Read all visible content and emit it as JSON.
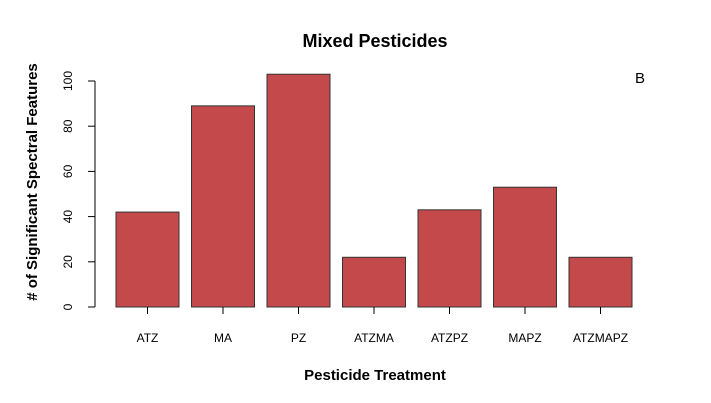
{
  "chart_data": {
    "type": "bar",
    "title": "Mixed Pesticides",
    "xlabel": "Pesticide Treatment",
    "ylabel": "# of Significant Spectral Features",
    "panel_label": "B",
    "categories": [
      "ATZ",
      "MA",
      "PZ",
      "ATZMA",
      "ATZPZ",
      "MAPZ",
      "ATZMAPZ"
    ],
    "values": [
      42,
      89,
      103,
      22,
      43,
      53,
      22
    ],
    "ylim": [
      0,
      100
    ],
    "yticks": [
      0,
      20,
      40,
      60,
      80,
      100
    ],
    "bar_color": "#c4494b",
    "bar_edge_color": "#333333",
    "grid": false,
    "legend": "none"
  }
}
